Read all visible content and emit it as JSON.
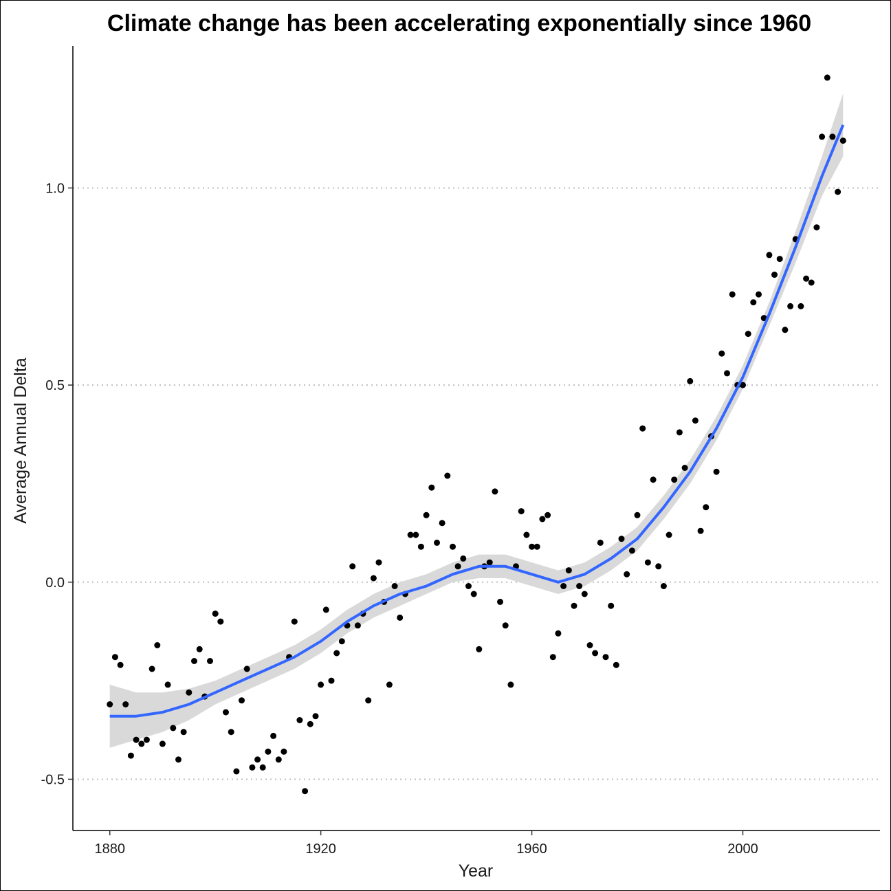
{
  "chart_data": {
    "type": "scatter",
    "title": "Climate change has been accelerating exponentially since 1960",
    "xlabel": "Year",
    "ylabel": "Average Annual Delta",
    "xlim": [
      1873,
      2026
    ],
    "ylim": [
      -0.63,
      1.36
    ],
    "x_ticks": [
      1880,
      1920,
      1960,
      2000
    ],
    "x_tick_labels": [
      "1880",
      "1920",
      "1960",
      "2000"
    ],
    "y_ticks": [
      -0.5,
      0.0,
      0.5,
      1.0
    ],
    "y_tick_labels": [
      "-0.5",
      "0.0",
      "0.5",
      "1.0"
    ],
    "grid": "horizontal dotted at y ticks",
    "legend": "none",
    "colors": {
      "points": "#000000",
      "smooth_line": "#3366FF",
      "confidence_band": "#d9d9d9",
      "grid": "#bfbfbf"
    },
    "series": [
      {
        "type": "points",
        "points": [
          [
            1880,
            -0.31
          ],
          [
            1881,
            -0.19
          ],
          [
            1882,
            -0.21
          ],
          [
            1883,
            -0.31
          ],
          [
            1884,
            -0.44
          ],
          [
            1885,
            -0.4
          ],
          [
            1886,
            -0.41
          ],
          [
            1887,
            -0.4
          ],
          [
            1888,
            -0.22
          ],
          [
            1889,
            -0.16
          ],
          [
            1890,
            -0.41
          ],
          [
            1891,
            -0.26
          ],
          [
            1892,
            -0.37
          ],
          [
            1893,
            -0.45
          ],
          [
            1894,
            -0.38
          ],
          [
            1895,
            -0.28
          ],
          [
            1896,
            -0.2
          ],
          [
            1897,
            -0.17
          ],
          [
            1898,
            -0.29
          ],
          [
            1899,
            -0.2
          ],
          [
            1900,
            -0.08
          ],
          [
            1901,
            -0.1
          ],
          [
            1902,
            -0.33
          ],
          [
            1903,
            -0.38
          ],
          [
            1904,
            -0.48
          ],
          [
            1905,
            -0.3
          ],
          [
            1906,
            -0.22
          ],
          [
            1907,
            -0.47
          ],
          [
            1908,
            -0.45
          ],
          [
            1909,
            -0.47
          ],
          [
            1910,
            -0.43
          ],
          [
            1911,
            -0.39
          ],
          [
            1912,
            -0.45
          ],
          [
            1913,
            -0.43
          ],
          [
            1914,
            -0.19
          ],
          [
            1915,
            -0.1
          ],
          [
            1916,
            -0.35
          ],
          [
            1917,
            -0.53
          ],
          [
            1918,
            -0.36
          ],
          [
            1919,
            -0.34
          ],
          [
            1920,
            -0.26
          ],
          [
            1921,
            -0.07
          ],
          [
            1922,
            -0.25
          ],
          [
            1923,
            -0.18
          ],
          [
            1924,
            -0.15
          ],
          [
            1925,
            -0.11
          ],
          [
            1926,
            0.04
          ],
          [
            1927,
            -0.11
          ],
          [
            1928,
            -0.08
          ],
          [
            1929,
            -0.3
          ],
          [
            1930,
            0.01
          ],
          [
            1931,
            0.05
          ],
          [
            1932,
            -0.05
          ],
          [
            1933,
            -0.26
          ],
          [
            1934,
            -0.01
          ],
          [
            1935,
            -0.09
          ],
          [
            1936,
            -0.03
          ],
          [
            1937,
            0.12
          ],
          [
            1938,
            0.12
          ],
          [
            1939,
            0.09
          ],
          [
            1940,
            0.17
          ],
          [
            1941,
            0.24
          ],
          [
            1942,
            0.1
          ],
          [
            1943,
            0.15
          ],
          [
            1944,
            0.27
          ],
          [
            1945,
            0.09
          ],
          [
            1946,
            0.04
          ],
          [
            1947,
            0.06
          ],
          [
            1948,
            -0.01
          ],
          [
            1949,
            -0.03
          ],
          [
            1950,
            -0.17
          ],
          [
            1951,
            0.04
          ],
          [
            1952,
            0.05
          ],
          [
            1953,
            0.23
          ],
          [
            1954,
            -0.05
          ],
          [
            1955,
            -0.11
          ],
          [
            1956,
            -0.26
          ],
          [
            1957,
            0.04
          ],
          [
            1958,
            0.18
          ],
          [
            1959,
            0.12
          ],
          [
            1960,
            0.09
          ],
          [
            1961,
            0.09
          ],
          [
            1962,
            0.16
          ],
          [
            1963,
            0.17
          ],
          [
            1964,
            -0.19
          ],
          [
            1965,
            -0.13
          ],
          [
            1966,
            -0.01
          ],
          [
            1967,
            0.03
          ],
          [
            1968,
            -0.06
          ],
          [
            1969,
            -0.01
          ],
          [
            1970,
            -0.03
          ],
          [
            1971,
            -0.16
          ],
          [
            1972,
            -0.18
          ],
          [
            1973,
            0.1
          ],
          [
            1974,
            -0.19
          ],
          [
            1975,
            -0.06
          ],
          [
            1976,
            -0.21
          ],
          [
            1977,
            0.11
          ],
          [
            1978,
            0.02
          ],
          [
            1979,
            0.08
          ],
          [
            1980,
            0.17
          ],
          [
            1981,
            0.39
          ],
          [
            1982,
            0.05
          ],
          [
            1983,
            0.26
          ],
          [
            1984,
            0.04
          ],
          [
            1985,
            -0.01
          ],
          [
            1986,
            0.12
          ],
          [
            1987,
            0.26
          ],
          [
            1988,
            0.38
          ],
          [
            1989,
            0.29
          ],
          [
            1990,
            0.51
          ],
          [
            1991,
            0.41
          ],
          [
            1992,
            0.13
          ],
          [
            1993,
            0.19
          ],
          [
            1994,
            0.37
          ],
          [
            1995,
            0.28
          ],
          [
            1996,
            0.58
          ],
          [
            1997,
            0.53
          ],
          [
            1998,
            0.73
          ],
          [
            1999,
            0.5
          ],
          [
            2000,
            0.5
          ],
          [
            2001,
            0.63
          ],
          [
            2002,
            0.71
          ],
          [
            2003,
            0.73
          ],
          [
            2004,
            0.67
          ],
          [
            2005,
            0.83
          ],
          [
            2006,
            0.78
          ],
          [
            2007,
            0.82
          ],
          [
            2008,
            0.64
          ],
          [
            2009,
            0.7
          ],
          [
            2010,
            0.87
          ],
          [
            2011,
            0.7
          ],
          [
            2012,
            0.77
          ],
          [
            2013,
            0.76
          ],
          [
            2014,
            0.9
          ],
          [
            2015,
            1.13
          ],
          [
            2016,
            1.28
          ],
          [
            2017,
            1.13
          ],
          [
            2018,
            0.99
          ],
          [
            2019,
            1.12
          ]
        ]
      },
      {
        "type": "smooth",
        "method": "loess",
        "x": [
          1880,
          1885,
          1890,
          1895,
          1900,
          1905,
          1910,
          1915,
          1920,
          1925,
          1930,
          1935,
          1940,
          1945,
          1950,
          1955,
          1960,
          1965,
          1970,
          1975,
          1980,
          1985,
          1990,
          1995,
          2000,
          2005,
          2010,
          2015,
          2019
        ],
        "y": [
          -0.34,
          -0.34,
          -0.33,
          -0.31,
          -0.28,
          -0.25,
          -0.22,
          -0.19,
          -0.15,
          -0.1,
          -0.06,
          -0.03,
          -0.01,
          0.02,
          0.04,
          0.04,
          0.02,
          0.0,
          0.02,
          0.06,
          0.11,
          0.19,
          0.28,
          0.39,
          0.52,
          0.68,
          0.85,
          1.03,
          1.16
        ],
        "lower": [
          -0.42,
          -0.4,
          -0.38,
          -0.35,
          -0.31,
          -0.28,
          -0.25,
          -0.22,
          -0.18,
          -0.13,
          -0.09,
          -0.06,
          -0.03,
          0.0,
          0.01,
          0.01,
          -0.01,
          -0.03,
          -0.01,
          0.03,
          0.08,
          0.16,
          0.25,
          0.36,
          0.49,
          0.65,
          0.81,
          0.98,
          1.08
        ],
        "upper": [
          -0.26,
          -0.28,
          -0.28,
          -0.27,
          -0.25,
          -0.22,
          -0.19,
          -0.16,
          -0.12,
          -0.07,
          -0.03,
          0.0,
          0.02,
          0.05,
          0.07,
          0.07,
          0.05,
          0.03,
          0.05,
          0.09,
          0.14,
          0.22,
          0.31,
          0.42,
          0.55,
          0.71,
          0.89,
          1.08,
          1.24
        ]
      }
    ]
  }
}
